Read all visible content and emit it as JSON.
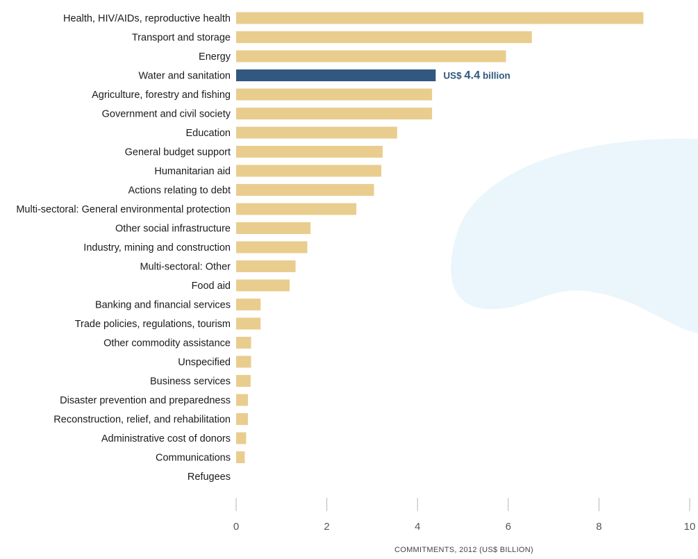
{
  "chart_data": {
    "type": "bar",
    "orientation": "horizontal",
    "categories": [
      "Health, HIV/AIDs, reproductive health",
      "Transport and storage",
      "Energy",
      "Water and sanitation",
      "Agriculture, forestry and fishing",
      "Government and civil society",
      "Education",
      "General budget support",
      "Humanitarian aid",
      "Actions relating to debt",
      "Multi-sectoral: General environmental protection",
      "Other social infrastructure",
      "Industry, mining and construction",
      "Multi-sectoral: Other",
      "Food aid",
      "Banking and financial services",
      "Trade policies, regulations, tourism",
      "Other commodity assistance",
      "Unspecified",
      "Business services",
      "Disaster prevention and preparedness",
      "Reconstruction, relief, and rehabilitation",
      "Administrative cost of donors",
      "Communications",
      "Refugees"
    ],
    "values": [
      8.98,
      6.52,
      5.95,
      4.4,
      4.32,
      4.32,
      3.55,
      3.23,
      3.2,
      3.04,
      2.65,
      1.64,
      1.57,
      1.31,
      1.18,
      0.54,
      0.54,
      0.33,
      0.33,
      0.32,
      0.26,
      0.26,
      0.22,
      0.19,
      0.0
    ],
    "highlight_category": "Water and sanitation",
    "annotation": {
      "prefix": "US$",
      "value": "4.4",
      "suffix": "billion"
    },
    "xlabel": "COMMITMENTS, 2012 (US$ BILLION)",
    "xlim": [
      0,
      10
    ],
    "xticks": [
      "0",
      "2",
      "4",
      "6",
      "8",
      "10"
    ],
    "grid": false,
    "legend": "none",
    "colors": {
      "bar": "#e9cd8e",
      "highlight": "#33587f",
      "annotation": "#33587f",
      "background_shape": "#eaf6fb",
      "tick_mark": "#b5b5b5"
    }
  }
}
